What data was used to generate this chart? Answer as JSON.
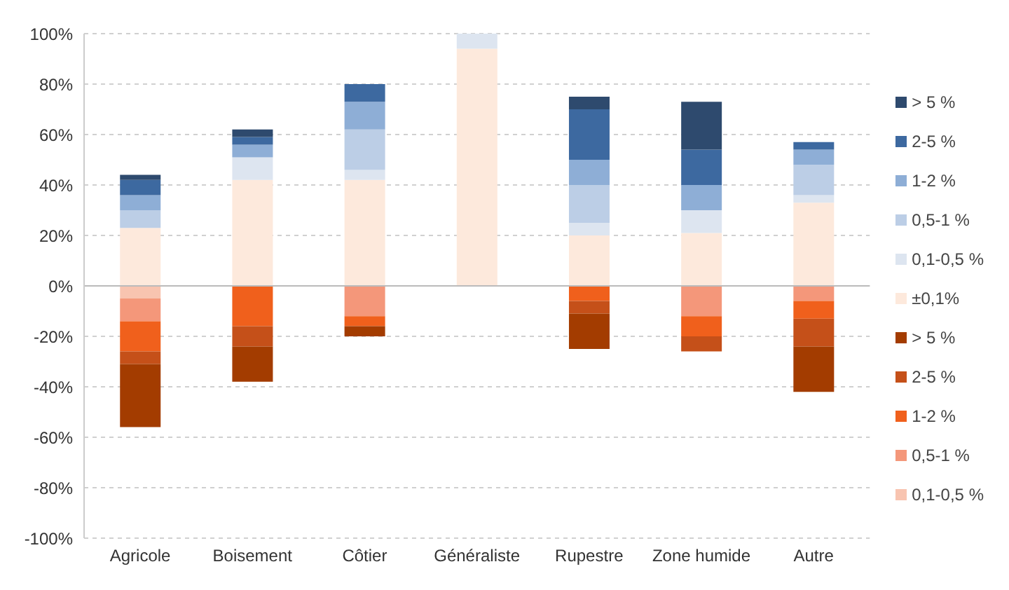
{
  "chart_data": {
    "type": "bar",
    "stacked": true,
    "categories": [
      "Agricole",
      "Boisement",
      "Côtier",
      "Généraliste",
      "Rupestre",
      "Zone humide",
      "Autre"
    ],
    "series": [
      {
        "name": "±0,1%",
        "color": "#fde9dc",
        "values": [
          23,
          42,
          42,
          94,
          20,
          21,
          33
        ]
      },
      {
        "name": "0,1-0,5 %",
        "color": "#dde5f0",
        "values": [
          0,
          9,
          4,
          6,
          5,
          9,
          3
        ]
      },
      {
        "name": "0,5-1 %",
        "color": "#bccee6",
        "values": [
          7,
          0,
          16,
          0,
          15,
          0,
          12
        ]
      },
      {
        "name": "1-2 %",
        "color": "#8eaed6",
        "values": [
          6,
          5,
          11,
          0,
          10,
          10,
          6
        ]
      },
      {
        "name": "2-5 %",
        "color": "#3d69a0",
        "values": [
          6,
          3,
          7,
          0,
          20,
          14,
          3
        ]
      },
      {
        "name": "> 5 %",
        "color": "#2e4a6e",
        "values": [
          2,
          3,
          0,
          0,
          5,
          19,
          0
        ]
      },
      {
        "name": "0,1-0,5 %",
        "color": "#f8c4b0",
        "values": [
          -5,
          0,
          0,
          0,
          0,
          0,
          0
        ]
      },
      {
        "name": "0,5-1 %",
        "color": "#f4977a",
        "values": [
          -9,
          0,
          -12,
          0,
          0,
          -12,
          -6
        ]
      },
      {
        "name": "1-2 %",
        "color": "#f0601c",
        "values": [
          -12,
          -16,
          -4,
          0,
          -6,
          -8,
          -7
        ]
      },
      {
        "name": "2-5 %",
        "color": "#c55019",
        "values": [
          -5,
          -8,
          0,
          0,
          -5,
          -6,
          -11
        ]
      },
      {
        "name": "> 5 %",
        "color": "#a33c00",
        "values": [
          -25,
          -14,
          -4,
          0,
          -14,
          0,
          -18
        ]
      }
    ],
    "ylim": [
      -100,
      100
    ],
    "yticks": [
      {
        "value": -100,
        "label": "-100%"
      },
      {
        "value": -80,
        "label": "-80%"
      },
      {
        "value": -60,
        "label": "-60%"
      },
      {
        "value": -40,
        "label": "-40%"
      },
      {
        "value": -20,
        "label": "-20%"
      },
      {
        "value": 0,
        "label": "0%"
      },
      {
        "value": 20,
        "label": "20%"
      },
      {
        "value": 40,
        "label": "40%"
      },
      {
        "value": 60,
        "label": "60%"
      },
      {
        "value": 80,
        "label": "80%"
      },
      {
        "value": 100,
        "label": "100%"
      }
    ],
    "grid": "y",
    "legend": "right"
  }
}
